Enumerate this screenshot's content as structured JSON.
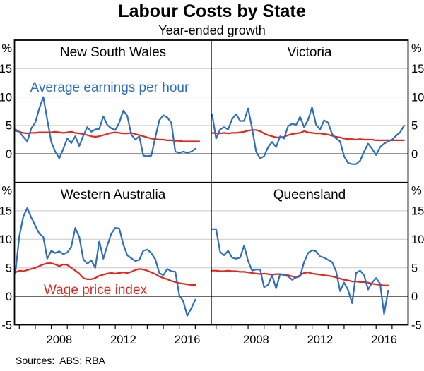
{
  "header": {
    "title": "Labour Costs by State",
    "subtitle": "Year-ended growth"
  },
  "footer": {
    "sources": "Sources:  ABS; RBA"
  },
  "colors": {
    "grid": "#c9c9c9",
    "zero_line": "#555555",
    "frame": "#000000",
    "earnings": "#2d6ebe",
    "wpi": "#e3271e"
  },
  "chart_data": {
    "type": "line",
    "unit": "%",
    "ylim": [
      -5,
      20
    ],
    "gridlines": [
      15,
      10,
      5
    ],
    "zero_line": 0,
    "y_axis_labels_top": [
      "%",
      "15",
      "10",
      "5",
      "0"
    ],
    "y_axis_labels_bottom": [
      "%",
      "15",
      "10",
      "5",
      "0",
      "-5"
    ],
    "x_domain": [
      2005.7,
      2018.0
    ],
    "x_minor_ticks": [
      2006,
      2007,
      2008,
      2009,
      2010,
      2011,
      2012,
      2013,
      2014,
      2015,
      2016,
      2017
    ],
    "x_tick_labels": [
      {
        "label": "2008",
        "at": 2008.5
      },
      {
        "label": "2012",
        "at": 2012.5
      },
      {
        "label": "2016",
        "at": 2016.5
      }
    ],
    "series_start_year": 2005.75,
    "series_step_years": 0.25,
    "legend": {
      "earnings": {
        "label": "Average earnings per hour",
        "color": "#2d6ebe"
      },
      "wpi": {
        "label": "Wage price index",
        "color": "#e3271e"
      }
    },
    "panels": [
      {
        "title": "New South Wales",
        "row": 0,
        "col": 0,
        "series": {
          "earnings": [
            4.3,
            3.9,
            3.0,
            2.2,
            4.5,
            5.5,
            8.0,
            10.0,
            6.0,
            2.1,
            0.4,
            -0.8,
            0.9,
            2.7,
            1.9,
            3.1,
            1.4,
            3.2,
            4.7,
            3.9,
            4.3,
            4.4,
            6.6,
            5.1,
            4.5,
            4.2,
            5.5,
            7.6,
            6.7,
            3.4,
            2.5,
            3.1,
            -0.3,
            -0.4,
            -0.3,
            2.9,
            5.9,
            6.8,
            6.4,
            5.5,
            0.4,
            0.2,
            0.4,
            0.2,
            0.4,
            0.9
          ],
          "wpi": [
            4.1,
            3.9,
            3.7,
            3.6,
            3.7,
            3.7,
            3.8,
            3.8,
            3.8,
            3.8,
            3.9,
            3.8,
            3.7,
            3.8,
            3.9,
            3.7,
            3.6,
            3.5,
            3.3,
            3.1,
            3.0,
            3.1,
            3.3,
            3.5,
            3.7,
            3.8,
            3.7,
            3.6,
            3.6,
            3.7,
            3.5,
            3.3,
            3.1,
            2.9,
            2.7,
            2.6,
            2.5,
            2.5,
            2.4,
            2.4,
            2.3,
            2.3,
            2.2,
            2.2,
            2.2,
            2.2,
            2.2
          ]
        }
      },
      {
        "title": "Victoria",
        "row": 0,
        "col": 1,
        "series": {
          "earnings": [
            7.0,
            2.7,
            4.3,
            4.7,
            4.3,
            6.1,
            7.0,
            5.8,
            5.8,
            8.0,
            4.5,
            0.4,
            -0.8,
            -0.4,
            1.2,
            2.1,
            1.2,
            3.1,
            2.7,
            4.9,
            5.3,
            5.1,
            6.5,
            4.7,
            6.0,
            8.2,
            5.1,
            4.3,
            5.9,
            5.5,
            3.5,
            2.7,
            2.2,
            -0.4,
            -1.6,
            -1.8,
            -1.8,
            -1.2,
            0.4,
            1.8,
            0.9,
            -0.2,
            1.2,
            1.8,
            2.2,
            2.5,
            3.2,
            3.8,
            5.0
          ],
          "wpi": [
            3.7,
            3.6,
            3.6,
            3.7,
            3.6,
            3.7,
            3.7,
            3.8,
            3.9,
            4.1,
            4.2,
            4.2,
            4.0,
            3.6,
            3.3,
            3.1,
            2.9,
            2.9,
            3.0,
            3.3,
            3.5,
            3.6,
            3.7,
            4.0,
            3.8,
            3.7,
            3.6,
            3.6,
            3.5,
            3.4,
            3.2,
            3.0,
            2.9,
            2.7,
            2.6,
            2.6,
            2.5,
            2.6,
            2.5,
            2.5,
            2.5,
            2.4,
            2.4,
            2.4,
            2.4,
            2.4,
            2.4,
            2.4,
            2.4
          ]
        }
      },
      {
        "title": "Western Australia",
        "row": 1,
        "col": 0,
        "series": {
          "earnings": [
            4.0,
            10.5,
            14.0,
            15.5,
            13.8,
            12.4,
            11.0,
            10.4,
            6.6,
            8.0,
            7.6,
            7.9,
            7.4,
            7.7,
            8.7,
            12.0,
            10.4,
            6.5,
            5.7,
            6.3,
            5.0,
            9.7,
            6.6,
            8.9,
            11.0,
            12.0,
            11.9,
            9.1,
            7.2,
            6.7,
            6.2,
            6.4,
            8.0,
            8.2,
            7.6,
            6.5,
            4.1,
            3.7,
            4.8,
            4.4,
            4.3,
            0.2,
            -0.9,
            -3.4,
            -2.1,
            -0.6
          ],
          "wpi": [
            4.2,
            4.5,
            4.4,
            4.6,
            4.8,
            5.0,
            5.3,
            5.6,
            5.8,
            5.8,
            5.6,
            5.3,
            5.6,
            5.5,
            5.0,
            4.5,
            4.0,
            3.2,
            3.0,
            3.0,
            3.2,
            3.6,
            3.8,
            4.0,
            4.1,
            4.0,
            4.1,
            4.2,
            4.1,
            4.3,
            4.6,
            4.8,
            4.7,
            4.5,
            4.2,
            3.9,
            3.5,
            3.2,
            3.0,
            2.7,
            2.5,
            2.3,
            2.2,
            2.1,
            2.0,
            2.0
          ]
        }
      },
      {
        "title": "Queensland",
        "row": 1,
        "col": 1,
        "series": {
          "earnings": [
            11.8,
            11.8,
            7.8,
            7.2,
            8.0,
            6.8,
            6.6,
            6.8,
            8.9,
            6.2,
            4.5,
            4.7,
            4.7,
            1.6,
            2.0,
            3.7,
            1.4,
            3.9,
            3.7,
            3.5,
            2.9,
            3.3,
            3.5,
            6.0,
            7.6,
            8.1,
            7.9,
            7.0,
            6.8,
            6.4,
            6.0,
            4.4,
            0.9,
            2.4,
            1.1,
            -1.2,
            4.1,
            4.5,
            3.7,
            1.2,
            2.4,
            3.2,
            2.2,
            -3.1,
            1.0
          ],
          "wpi": [
            4.5,
            4.5,
            4.4,
            4.4,
            4.5,
            4.4,
            4.4,
            4.3,
            4.3,
            4.2,
            4.1,
            4.0,
            3.9,
            4.0,
            3.9,
            3.8,
            3.9,
            3.9,
            3.8,
            3.7,
            3.5,
            3.3,
            3.7,
            4.1,
            4.2,
            4.0,
            3.9,
            3.8,
            3.7,
            3.6,
            3.5,
            3.3,
            3.1,
            2.9,
            2.8,
            2.6,
            2.6,
            2.5,
            2.5,
            2.4,
            2.2,
            2.1,
            2.0,
            1.9,
            1.9
          ]
        }
      }
    ]
  }
}
